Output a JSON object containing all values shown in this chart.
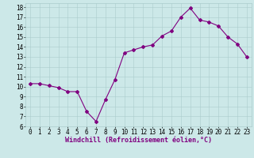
{
  "x": [
    0,
    1,
    2,
    3,
    4,
    5,
    6,
    7,
    8,
    9,
    10,
    11,
    12,
    13,
    14,
    15,
    16,
    17,
    18,
    19,
    20,
    21,
    22,
    23
  ],
  "y": [
    10.3,
    10.3,
    10.1,
    9.9,
    9.5,
    9.5,
    7.5,
    6.5,
    8.7,
    10.7,
    13.4,
    13.7,
    14.0,
    14.2,
    15.1,
    15.6,
    17.0,
    17.9,
    16.7,
    16.5,
    16.1,
    15.0,
    14.3,
    13.0
  ],
  "line_color": "#800080",
  "marker": "D",
  "marker_size": 2.0,
  "bg_color": "#cce8e8",
  "grid_color": "#aacccc",
  "xlabel": "Windchill (Refroidissement éolien,°C)",
  "xlim": [
    -0.5,
    23.5
  ],
  "ylim": [
    6,
    18.4
  ],
  "yticks": [
    6,
    7,
    8,
    9,
    10,
    11,
    12,
    13,
    14,
    15,
    16,
    17,
    18
  ],
  "xticks": [
    0,
    1,
    2,
    3,
    4,
    5,
    6,
    7,
    8,
    9,
    10,
    11,
    12,
    13,
    14,
    15,
    16,
    17,
    18,
    19,
    20,
    21,
    22,
    23
  ],
  "axis_label_fontsize": 6.0,
  "tick_fontsize": 5.5,
  "linewidth": 0.8
}
